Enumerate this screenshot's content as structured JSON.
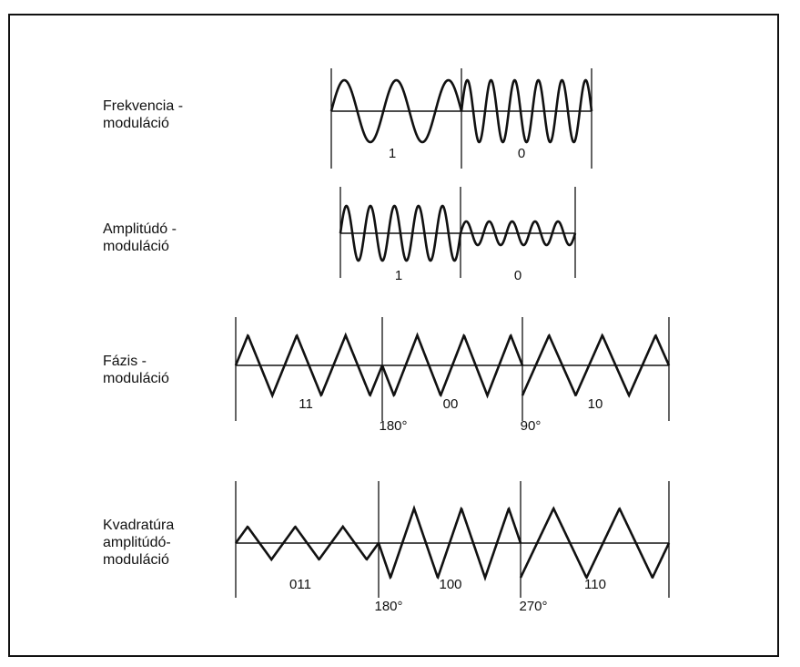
{
  "diagram": {
    "rows": [
      {
        "label": "Frekvencia -\nmoduláció",
        "bits": [
          "1",
          "0"
        ],
        "phases": []
      },
      {
        "label": "Amplitúdó -\nmoduláció",
        "bits": [
          "1",
          "0"
        ],
        "phases": []
      },
      {
        "label": "Fázis -\nmoduláció",
        "bits": [
          "11",
          "00",
          "10"
        ],
        "phases": [
          "180°",
          "90°"
        ]
      },
      {
        "label": "Kvadratúra\namplitúdó-\nmoduláció",
        "bits": [
          "011",
          "100",
          "110"
        ],
        "phases": [
          "180°",
          "270°"
        ]
      }
    ]
  }
}
